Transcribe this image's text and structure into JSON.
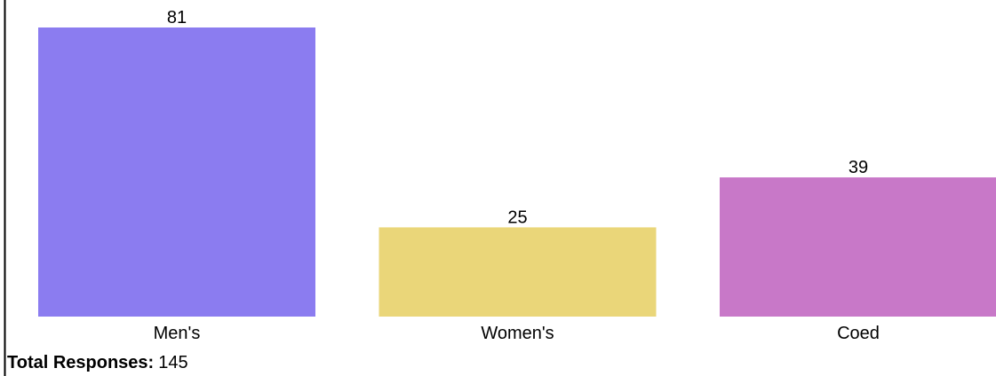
{
  "chart_data": {
    "type": "bar",
    "categories": [
      "Men's",
      "Women's",
      "Coed"
    ],
    "values": [
      81,
      25,
      39
    ],
    "colors": [
      "#8b7cf0",
      "#ead679",
      "#c878c8"
    ],
    "footer": {
      "label": "Total Responses:",
      "value": 145
    }
  }
}
